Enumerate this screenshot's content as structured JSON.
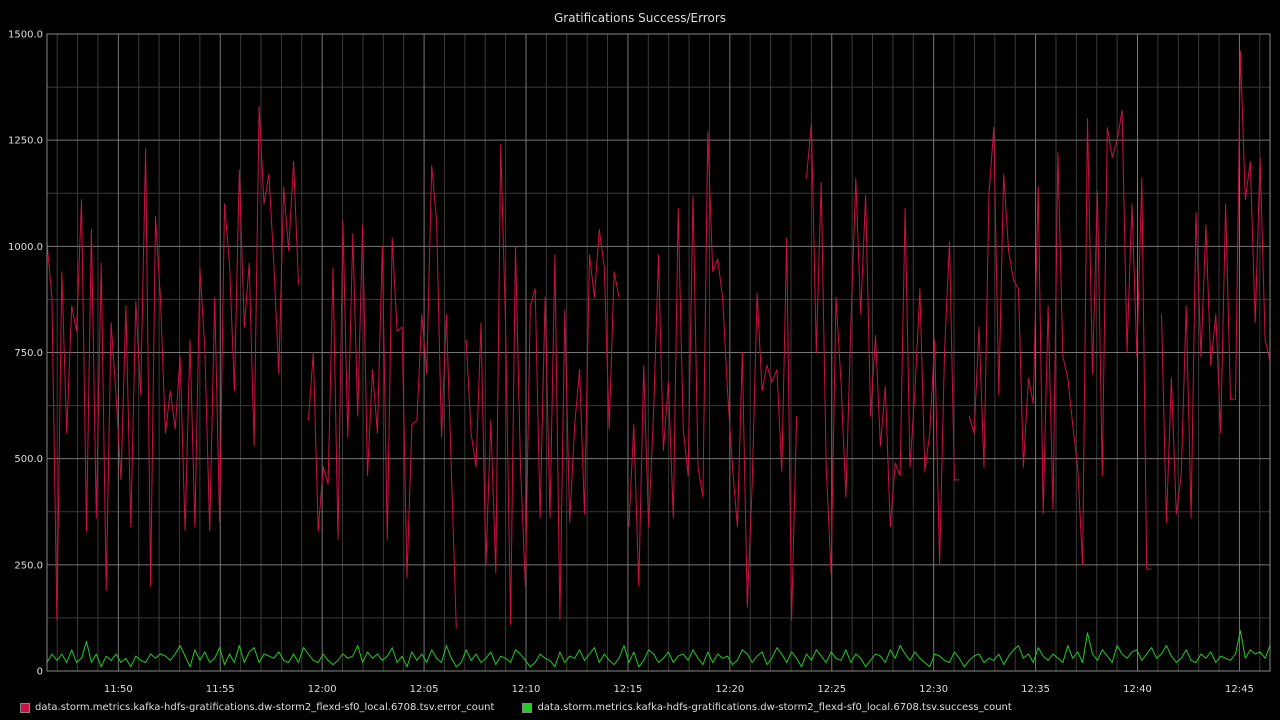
{
  "chart_data": {
    "type": "line",
    "title": "Gratifications Success/Errors",
    "xlabel": "",
    "ylabel": "",
    "ylim": [
      0,
      1500
    ],
    "y_ticks": [
      "1500.0",
      "1250.0",
      "1000.0",
      "750.0",
      "500.0",
      "250.0",
      "0"
    ],
    "x_ticks": [
      "11:50",
      "11:55",
      "12:00",
      "12:05",
      "12:10",
      "12:15",
      "12:20",
      "12:25",
      "12:30",
      "12:35",
      "12:40",
      "12:45"
    ],
    "x_range_minutes": [
      -3.5,
      56.5
    ],
    "grid": true,
    "legend_position": "bottom",
    "series": [
      {
        "name": "data.storm.metrics.kafka-hdfs-gratifications.dw-storm2_flexd-sf0_local.6708.tsv.error_count",
        "color": "#cc1144",
        "x_start": -3.5,
        "x_end": 56.5,
        "values": [
          1010,
          880,
          120,
          940,
          560,
          860,
          800,
          1110,
          330,
          1040,
          360,
          960,
          190,
          820,
          650,
          450,
          860,
          340,
          870,
          650,
          1230,
          200,
          1070,
          880,
          560,
          660,
          570,
          740,
          330,
          780,
          340,
          950,
          760,
          330,
          880,
          350,
          1100,
          960,
          660,
          1180,
          810,
          960,
          530,
          1330,
          1100,
          1170,
          960,
          700,
          1140,
          990,
          1200,
          910,
          null,
          590,
          750,
          330,
          480,
          440,
          950,
          310,
          1060,
          550,
          1030,
          600,
          1050,
          460,
          710,
          560,
          1000,
          310,
          1020,
          800,
          810,
          220,
          580,
          590,
          840,
          700,
          1190,
          1060,
          550,
          840,
          470,
          100,
          null,
          780,
          560,
          480,
          820,
          250,
          590,
          230,
          1240,
          810,
          110,
          1000,
          490,
          200,
          860,
          900,
          360,
          880,
          360,
          980,
          120,
          850,
          350,
          580,
          710,
          370,
          980,
          880,
          1040,
          950,
          570,
          940,
          880,
          null,
          340,
          580,
          200,
          720,
          340,
          610,
          980,
          520,
          680,
          360,
          1090,
          570,
          460,
          1120,
          480,
          410,
          1270,
          940,
          970,
          880,
          660,
          480,
          340,
          750,
          150,
          440,
          890,
          660,
          720,
          680,
          710,
          470,
          1020,
          120,
          600,
          null,
          1160,
          1290,
          750,
          1150,
          480,
          230,
          880,
          680,
          410,
          810,
          1160,
          840,
          1120,
          600,
          790,
          530,
          670,
          340,
          490,
          460,
          1090,
          480,
          660,
          900,
          470,
          560,
          780,
          250,
          750,
          1010,
          450,
          450,
          null,
          600,
          560,
          810,
          480,
          1120,
          1280,
          650,
          1170,
          990,
          920,
          900,
          480,
          690,
          630,
          1140,
          370,
          860,
          380,
          1220,
          740,
          690,
          580,
          480,
          250,
          1300,
          700,
          1130,
          460,
          1280,
          1210,
          1250,
          1320,
          750,
          1100,
          740,
          1160,
          240,
          240,
          null,
          840,
          350,
          690,
          370,
          460,
          860,
          360,
          1080,
          740,
          1050,
          720,
          840,
          560,
          1100,
          640,
          640,
          1460,
          1110,
          1200,
          820,
          1210,
          780,
          730
        ]
      },
      {
        "name": "data.storm.metrics.kafka-hdfs-gratifications.dw-storm2_flexd-sf0_local.6708.tsv.success_count",
        "color": "#22cc22",
        "x_start": -3.5,
        "x_end": 56.5,
        "values": [
          20,
          40,
          25,
          40,
          20,
          50,
          20,
          30,
          70,
          20,
          40,
          10,
          35,
          25,
          40,
          20,
          30,
          10,
          35,
          25,
          20,
          40,
          30,
          40,
          35,
          25,
          40,
          60,
          35,
          10,
          50,
          25,
          45,
          20,
          30,
          55,
          15,
          40,
          20,
          60,
          20,
          45,
          55,
          20,
          40,
          35,
          30,
          45,
          25,
          20,
          40,
          20,
          55,
          40,
          25,
          20,
          40,
          25,
          15,
          25,
          40,
          30,
          35,
          60,
          20,
          45,
          30,
          40,
          25,
          35,
          55,
          20,
          35,
          10,
          45,
          25,
          40,
          20,
          50,
          30,
          20,
          60,
          30,
          10,
          20,
          50,
          25,
          40,
          20,
          30,
          45,
          15,
          35,
          30,
          20,
          50,
          40,
          25,
          10,
          20,
          40,
          30,
          25,
          10,
          45,
          20,
          35,
          30,
          50,
          25,
          40,
          55,
          20,
          40,
          25,
          15,
          30,
          60,
          20,
          45,
          10,
          25,
          50,
          40,
          20,
          30,
          45,
          20,
          35,
          40,
          25,
          50,
          30,
          15,
          45,
          20,
          40,
          30,
          35,
          15,
          25,
          50,
          40,
          20,
          35,
          45,
          15,
          30,
          55,
          40,
          20,
          45,
          30,
          10,
          40,
          25,
          50,
          35,
          20,
          45,
          30,
          25,
          50,
          20,
          40,
          30,
          10,
          25,
          40,
          35,
          20,
          50,
          30,
          60,
          40,
          25,
          45,
          30,
          20,
          10,
          40,
          35,
          25,
          20,
          45,
          30,
          10,
          25,
          35,
          40,
          20,
          30,
          25,
          40,
          15,
          35,
          50,
          60,
          30,
          40,
          20,
          55,
          35,
          25,
          40,
          30,
          20,
          60,
          30,
          45,
          20,
          90,
          40,
          25,
          50,
          35,
          20,
          60,
          40,
          30,
          45,
          50,
          25,
          40,
          55,
          30,
          40,
          60,
          35,
          20,
          30,
          50,
          25,
          20,
          40,
          30,
          45,
          20,
          35,
          30,
          25,
          40,
          95,
          30,
          50,
          40,
          45,
          30,
          60
        ]
      }
    ]
  }
}
